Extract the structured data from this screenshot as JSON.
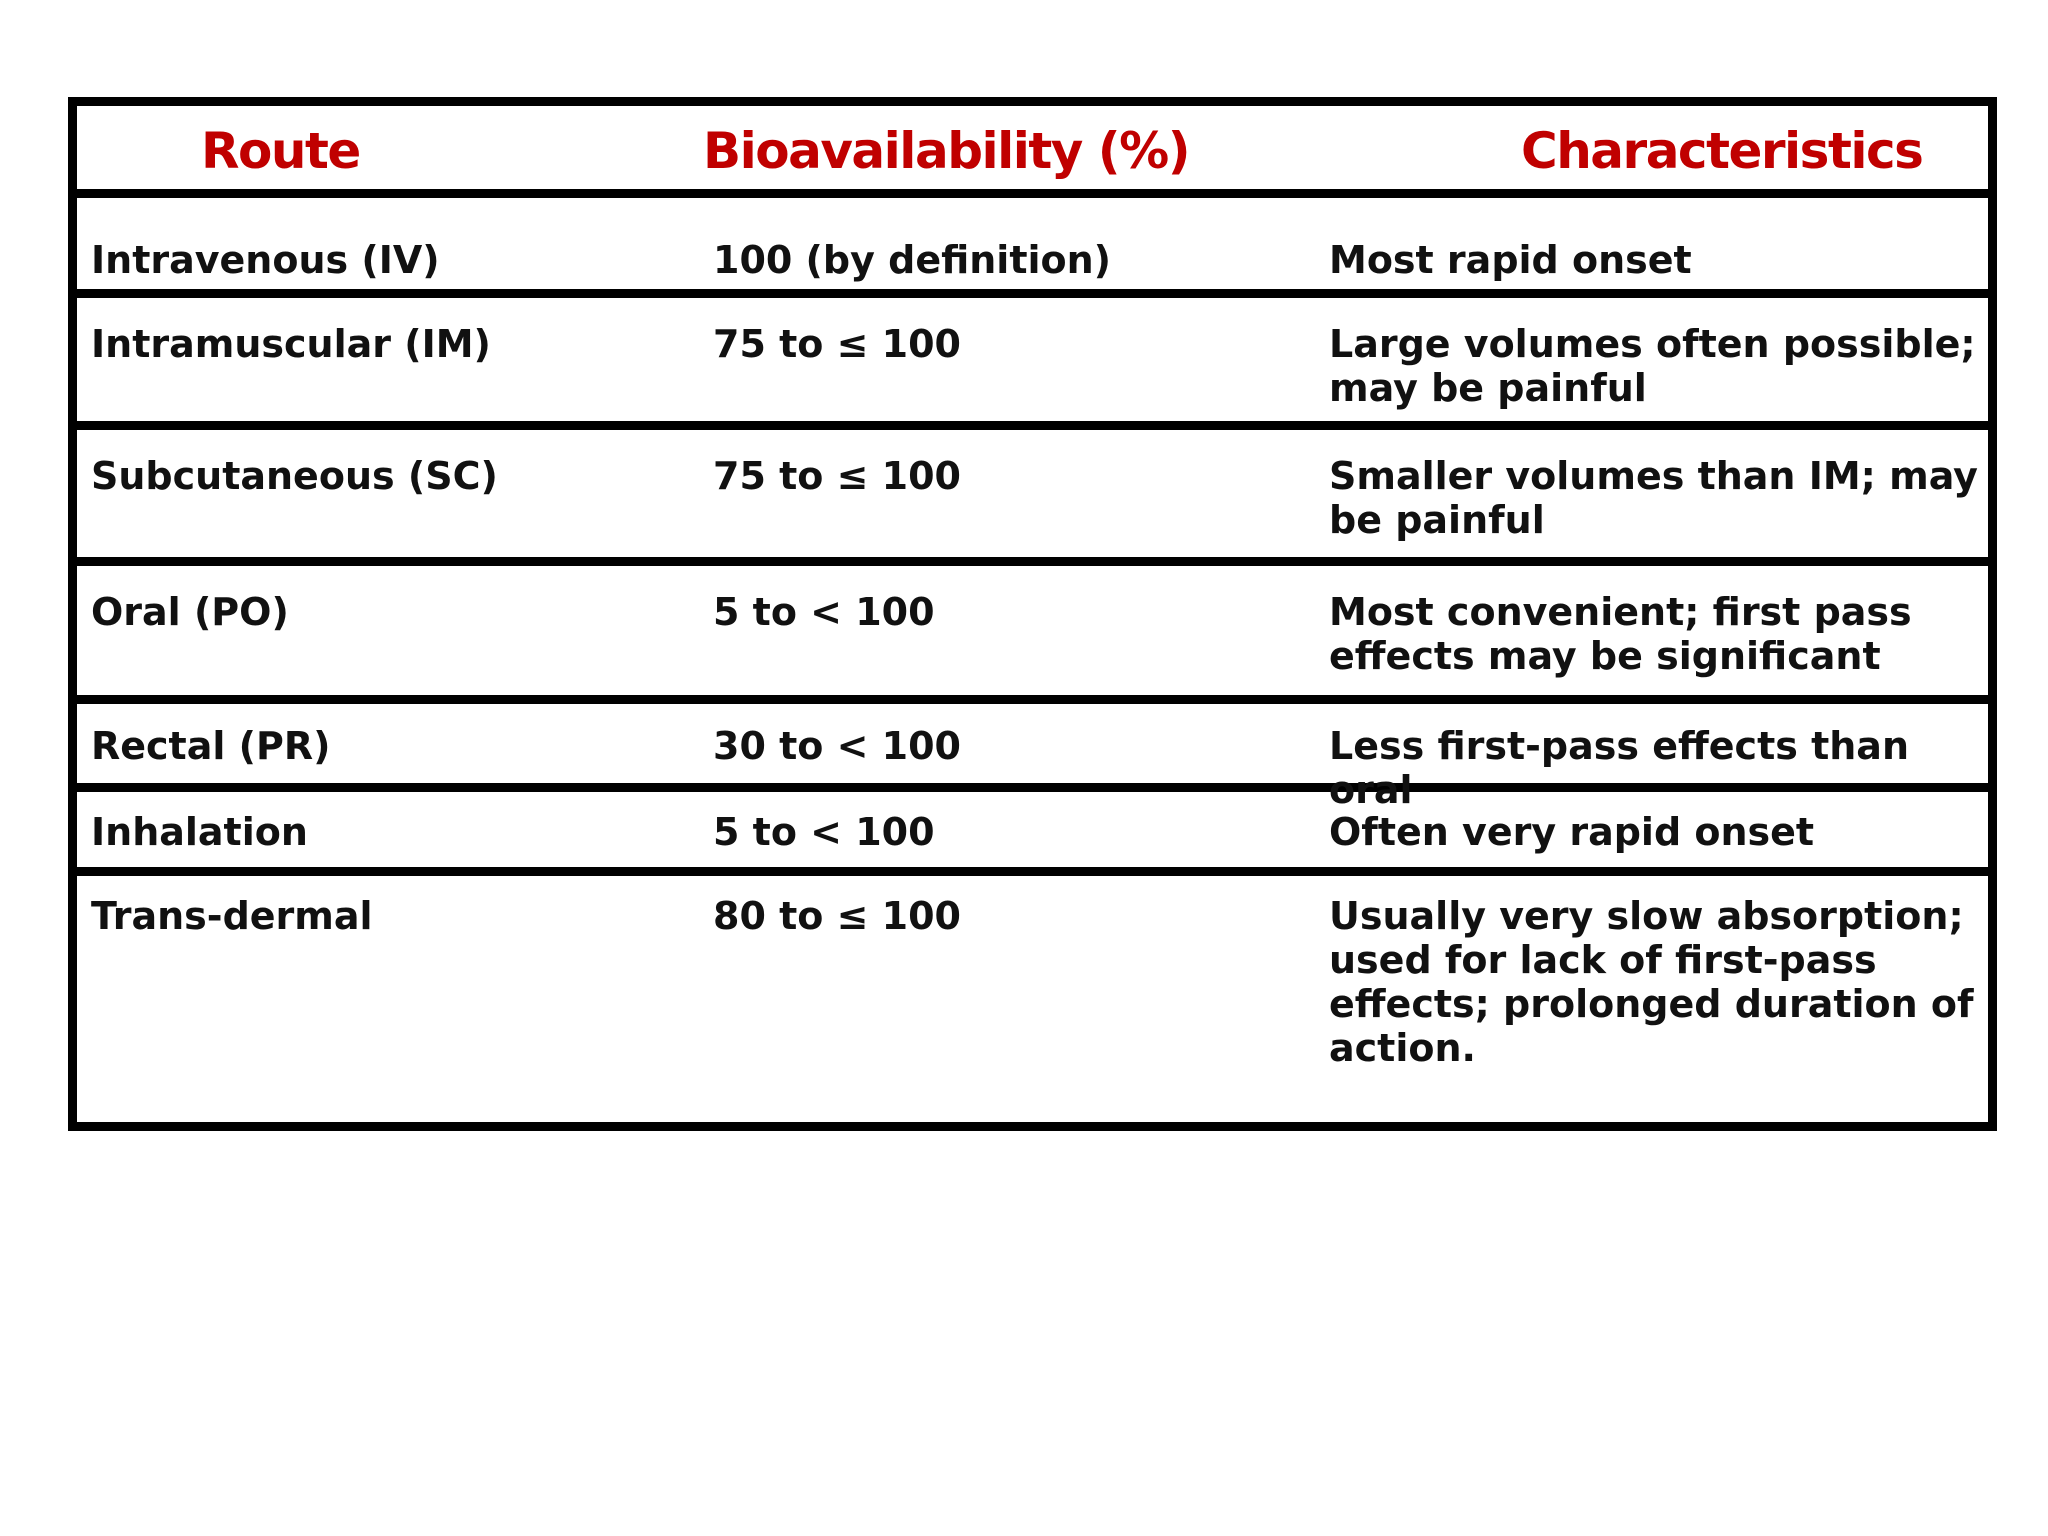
{
  "table": {
    "headers": [
      "Route",
      "Bioavailability (%)",
      "Characteristics"
    ],
    "rows": [
      {
        "route": "Intravenous (IV)",
        "bioavailability": "100 (by definition)",
        "characteristics": "Most rapid onset"
      },
      {
        "route": "Intramuscular (IM)",
        "bioavailability": "75 to ≤ 100",
        "characteristics": "Large volumes often possible; may be painful"
      },
      {
        "route": "Subcutaneous (SC)",
        "bioavailability": "75 to ≤ 100",
        "characteristics": "Smaller volumes than IM; may be painful"
      },
      {
        "route": "Oral (PO)",
        "bioavailability": "5 to < 100",
        "characteristics": "Most convenient; first pass effects may be significant"
      },
      {
        "route": "Rectal (PR)",
        "bioavailability": "30 to  < 100",
        "characteristics": "Less first-pass effects than oral"
      },
      {
        "route": "Inhalation",
        "bioavailability": "5 to  < 100",
        "characteristics": "Often very rapid onset"
      },
      {
        "route": "Trans-dermal",
        "bioavailability": "80 to  ≤ 100",
        "characteristics": "Usually very slow absorption; used for lack of first-pass effects; prolonged duration of action."
      }
    ]
  },
  "colors": {
    "header_text": "#c00000",
    "body_text": "#111111",
    "rules": "#000000"
  }
}
